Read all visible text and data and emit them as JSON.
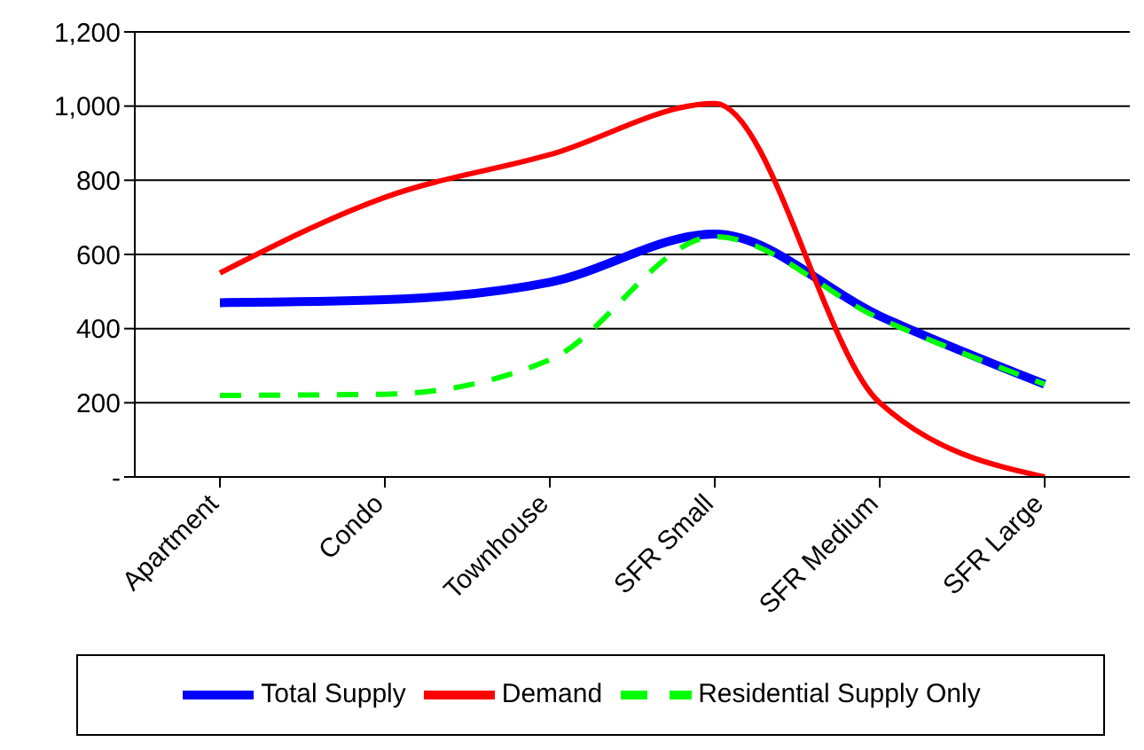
{
  "chart_data": {
    "type": "line",
    "categories": [
      "Apartment",
      "Condo",
      "Townhouse",
      "SFR Small",
      "SFR Medium",
      "SFR Large"
    ],
    "series": [
      {
        "name": "Total Supply",
        "color": "#0000ff",
        "values": [
          470,
          478,
          525,
          655,
          434,
          250
        ]
      },
      {
        "name": "Demand",
        "color": "#ff0000",
        "values": [
          550,
          754,
          869,
          1007,
          200,
          0
        ]
      },
      {
        "name": "Residential Supply Only",
        "color": "#00ff00",
        "values": [
          220,
          223,
          316,
          648,
          427,
          250
        ],
        "line_style": "dashed"
      }
    ],
    "ylim": [
      0,
      1200
    ],
    "yticks": [
      {
        "value": 0,
        "label": "-"
      },
      200,
      400,
      600,
      800,
      {
        "value": 1000,
        "label": "1,000"
      },
      {
        "value": 1200,
        "label": "1,200"
      }
    ],
    "grid": "y",
    "legend": "bottom",
    "marker": "none"
  }
}
